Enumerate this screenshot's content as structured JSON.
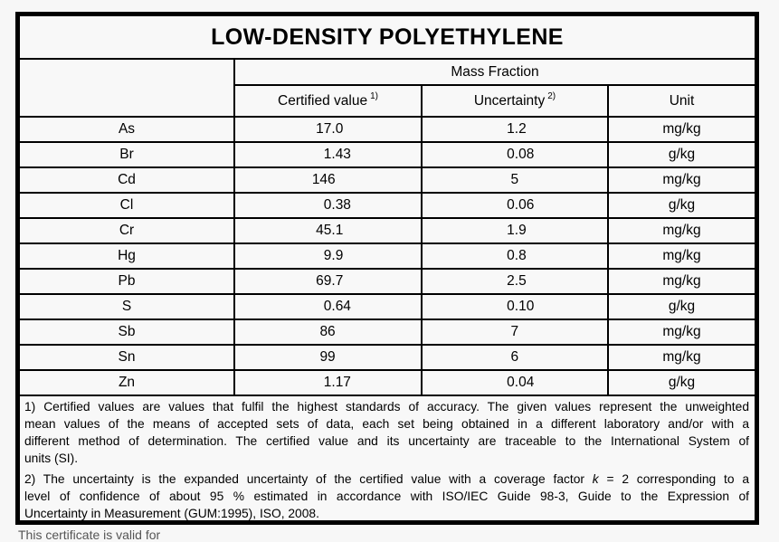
{
  "title": "LOW-DENSITY POLYETHYLENE",
  "table": {
    "group_header": "Mass Fraction",
    "headers": {
      "certified": {
        "label": "Certified value",
        "sup": "1)"
      },
      "uncertainty": {
        "label": "Uncertainty",
        "sup": "2)"
      },
      "unit": {
        "label": "Unit"
      }
    },
    "rows": [
      {
        "element": "As",
        "certified": "17.0",
        "uncertainty": "1.2",
        "unit": "mg/kg"
      },
      {
        "element": "Br",
        "certified": "1.43",
        "uncertainty": "0.08",
        "unit": "g/kg"
      },
      {
        "element": "Cd",
        "certified": "146",
        "uncertainty": "5",
        "unit": "mg/kg"
      },
      {
        "element": "Cl",
        "certified": "0.38",
        "uncertainty": "0.06",
        "unit": "g/kg"
      },
      {
        "element": "Cr",
        "certified": "45.1",
        "uncertainty": "1.9",
        "unit": "mg/kg"
      },
      {
        "element": "Hg",
        "certified": "9.9",
        "uncertainty": "0.8",
        "unit": "mg/kg"
      },
      {
        "element": "Pb",
        "certified": "69.7",
        "uncertainty": "2.5",
        "unit": "mg/kg"
      },
      {
        "element": "S",
        "certified": "0.64",
        "uncertainty": "0.10",
        "unit": "g/kg"
      },
      {
        "element": "Sb",
        "certified": "86",
        "uncertainty": "7",
        "unit": "mg/kg"
      },
      {
        "element": "Sn",
        "certified": "99",
        "uncertainty": "6",
        "unit": "mg/kg"
      },
      {
        "element": "Zn",
        "certified": "1.17",
        "uncertainty": "0.04",
        "unit": "g/kg"
      }
    ]
  },
  "footnotes": [
    {
      "id": "1",
      "lines": [
        [
          {
            "t": "1) Certified values are values that fulfil the highest standards of accuracy. The given values represent the unweighted"
          }
        ],
        [
          {
            "t": "mean values of the means of accepted sets of data, each set being obtained in a different laboratory and/or with a"
          }
        ],
        [
          {
            "t": "different method of determination. The certified value and its uncertainty are traceable to the International System of"
          }
        ],
        [
          {
            "t": "units (SI)."
          }
        ]
      ]
    },
    {
      "id": "2",
      "lines": [
        [
          {
            "t": "2) The uncertainty is the expanded uncertainty of the certified value with a coverage factor "
          },
          {
            "t": "k",
            "i": true
          },
          {
            "t": " = 2 corresponding to a"
          }
        ],
        [
          {
            "t": "level of confidence of about 95 % estimated in accordance with ISO/IEC Guide 98-3, Guide to the Expression of"
          }
        ],
        [
          {
            "t": "Uncertainty in Measurement (GUM:1995), ISO, 2008."
          }
        ]
      ]
    }
  ],
  "bottom_note": "This certificate is valid for"
}
